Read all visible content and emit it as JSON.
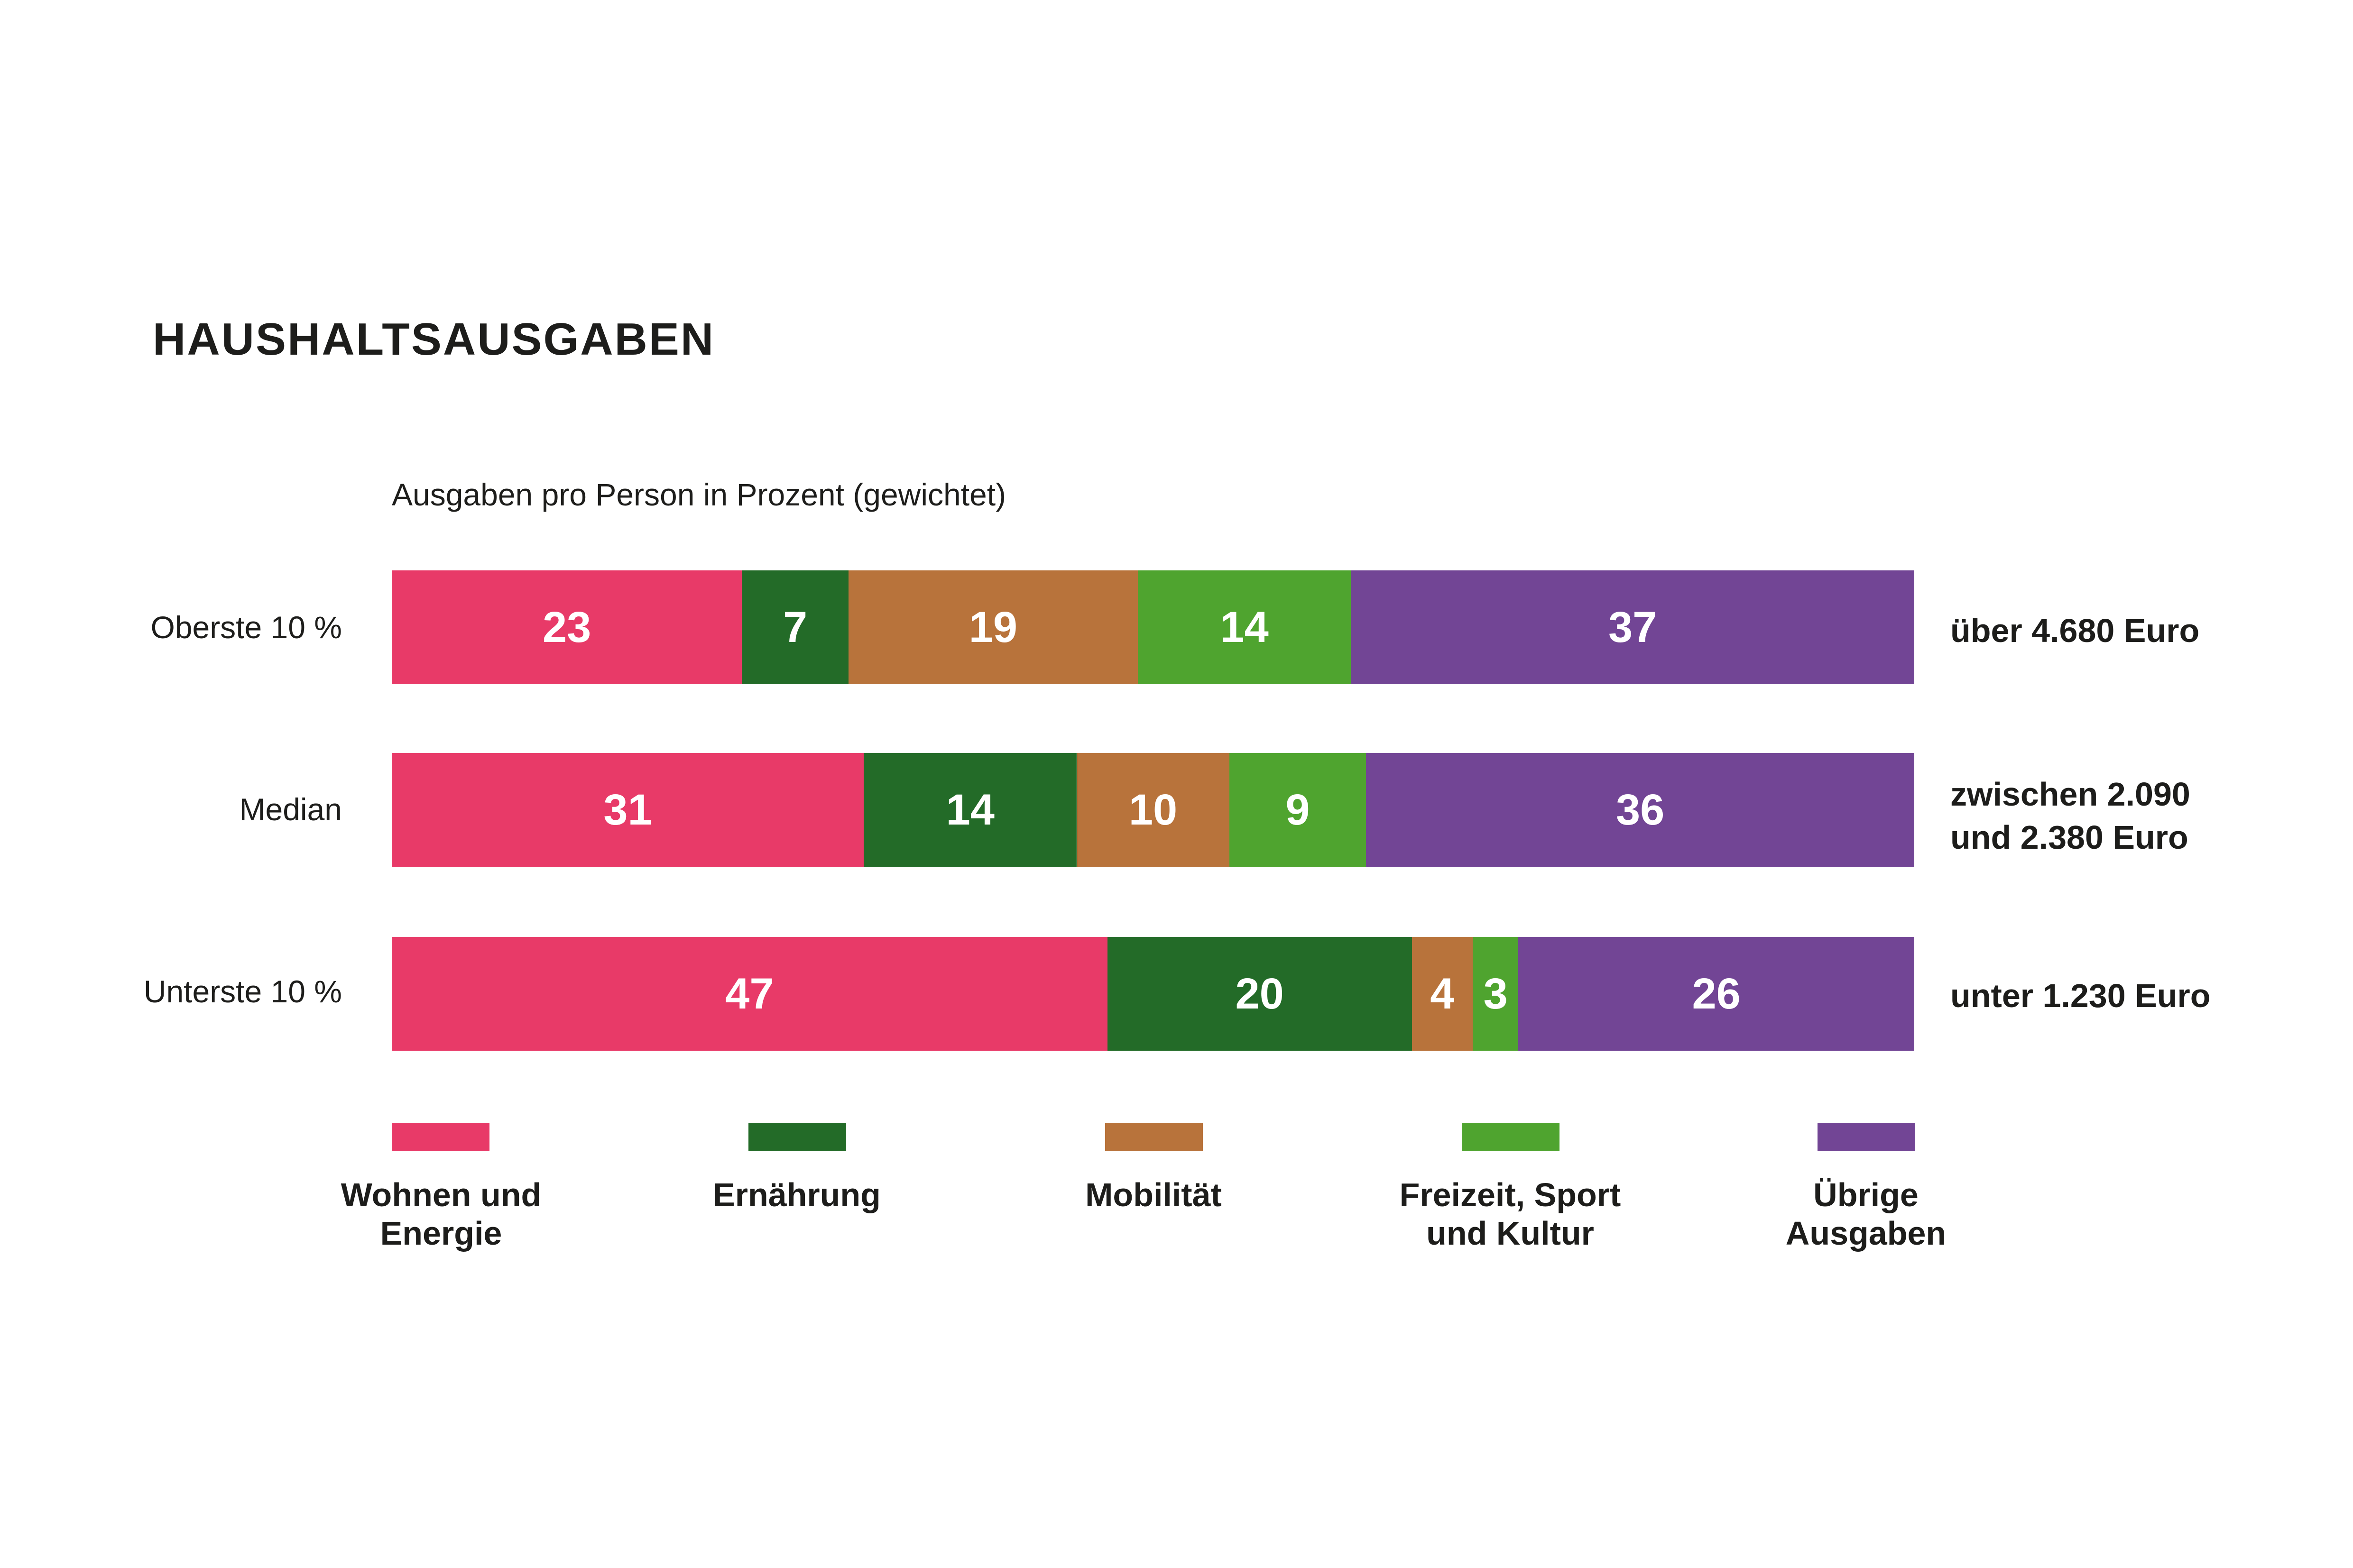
{
  "chart_data": {
    "type": "bar",
    "orientation": "horizontal-stacked-100",
    "title": "HAUSHALTSAUSGABEN",
    "subtitle": "Ausgaben pro Person in Prozent (gewichtet)",
    "series": [
      {
        "name": "Wohnen und\nEnergie",
        "color": "#e83a68"
      },
      {
        "name": "Ernährung",
        "color": "#236b28"
      },
      {
        "name": "Mobilität",
        "color": "#b8733b"
      },
      {
        "name": "Freizeit, Sport\nund Kultur",
        "color": "#4fa42f"
      },
      {
        "name": "Übrige\nAusgaben",
        "color": "#724595"
      }
    ],
    "rows": [
      {
        "label": "Oberste 10 %",
        "values": [
          23,
          7,
          19,
          14,
          37
        ],
        "income": "über 4.680 Euro"
      },
      {
        "label": "Median",
        "values": [
          31,
          14,
          10,
          9,
          36
        ],
        "income": "zwischen 2.090\nund 2.380 Euro"
      },
      {
        "label": "Unterste 10 %",
        "values": [
          47,
          20,
          4,
          3,
          26
        ],
        "income": "unter 1.230 Euro"
      }
    ],
    "xlim": [
      0,
      100
    ]
  }
}
